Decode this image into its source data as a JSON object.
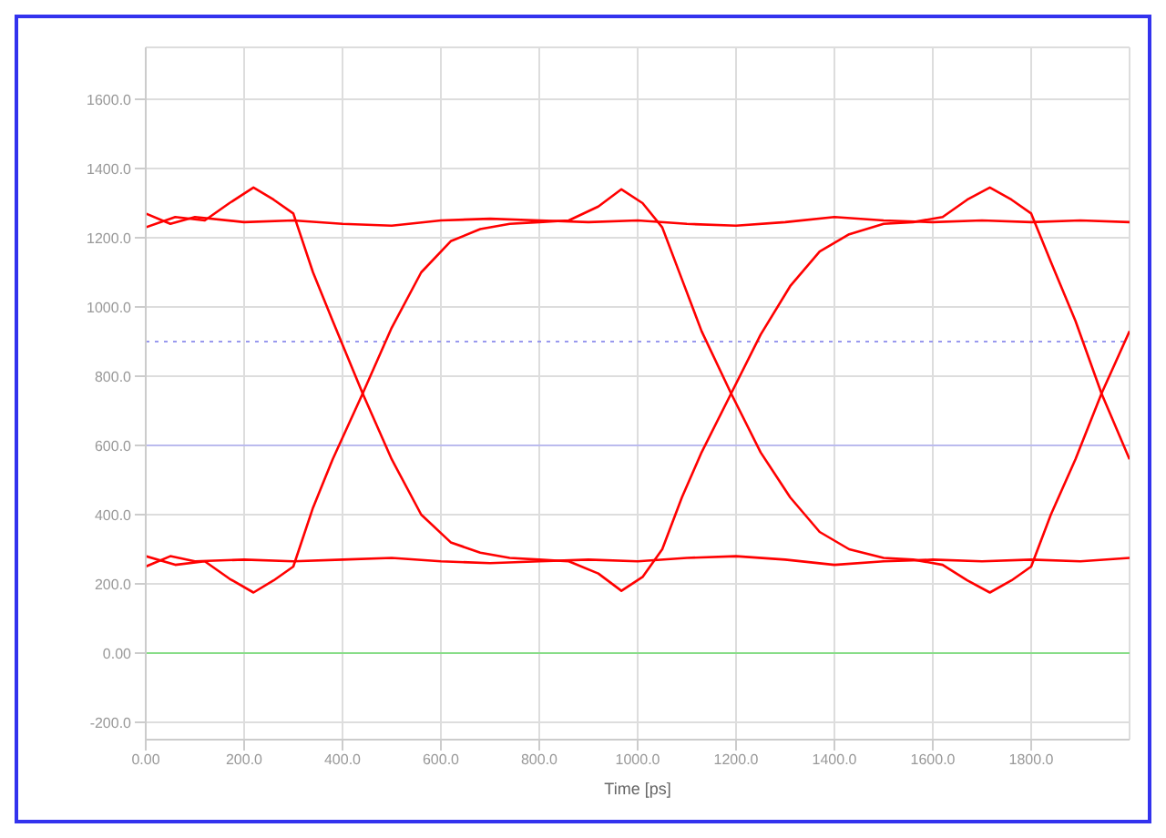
{
  "chart_data": {
    "type": "line",
    "xlabel": "Time [ps]",
    "xlim": [
      0,
      2000
    ],
    "ylim": [
      -250,
      1750
    ],
    "xticks": [
      {
        "value": 0,
        "label": "0.00"
      },
      {
        "value": 200,
        "label": "200.0"
      },
      {
        "value": 400,
        "label": "400.0"
      },
      {
        "value": 600,
        "label": "600.0"
      },
      {
        "value": 800,
        "label": "800.0"
      },
      {
        "value": 1000,
        "label": "1000.0"
      },
      {
        "value": 1200,
        "label": "1200.0"
      },
      {
        "value": 1400,
        "label": "1400.0"
      },
      {
        "value": 1600,
        "label": "1600.0"
      },
      {
        "value": 1800,
        "label": "1800.0"
      }
    ],
    "yticks": [
      {
        "value": -200,
        "label": "-200.0"
      },
      {
        "value": 0,
        "label": "0.00"
      },
      {
        "value": 200,
        "label": "200.0"
      },
      {
        "value": 400,
        "label": "400.0"
      },
      {
        "value": 600,
        "label": "600.0"
      },
      {
        "value": 800,
        "label": "800.0"
      },
      {
        "value": 1000,
        "label": "1000.0"
      },
      {
        "value": 1200,
        "label": "1200.0"
      },
      {
        "value": 1400,
        "label": "1400.0"
      },
      {
        "value": 1600,
        "label": "1600.0"
      }
    ],
    "grid": true,
    "legend": false,
    "marker": "none",
    "line_style": "solid",
    "ref_lines": [
      {
        "axis": "y",
        "value": 900,
        "color": "#9999ee",
        "line_style": "dotted"
      },
      {
        "axis": "y",
        "value": 600,
        "color": "#bbbbee",
        "line_style": "solid"
      },
      {
        "axis": "y",
        "value": 0,
        "color": "#88dd88",
        "line_style": "solid"
      }
    ],
    "series": [
      {
        "color": "#ff0000",
        "x": [
          0,
          60,
          120,
          170,
          219,
          260,
          300,
          340,
          380,
          441,
          500,
          560,
          620,
          680,
          740,
          800,
          860,
          920,
          967,
          1010,
          1050,
          1090,
          1130,
          1190,
          1250,
          1310,
          1370,
          1430,
          1500,
          1560,
          1620,
          1670,
          1716,
          1760,
          1800,
          1840,
          1890,
          1943,
          2000
        ],
        "values": [
          1230,
          1260,
          1250,
          1300,
          1345,
          1310,
          1270,
          1100,
          960,
          750,
          560,
          400,
          320,
          290,
          275,
          270,
          265,
          230,
          180,
          220,
          300,
          450,
          580,
          750,
          920,
          1060,
          1160,
          1210,
          1240,
          1245,
          1260,
          1310,
          1345,
          1310,
          1270,
          1130,
          960,
          750,
          560
        ]
      },
      {
        "color": "#ff0000",
        "x": [
          0,
          60,
          120,
          170,
          219,
          260,
          300,
          340,
          380,
          441,
          500,
          560,
          620,
          680,
          740,
          800,
          860,
          920,
          967,
          1010,
          1050,
          1090,
          1130,
          1190,
          1250,
          1310,
          1370,
          1430,
          1500,
          1560,
          1620,
          1670,
          1716,
          1760,
          1800,
          1840,
          1890,
          1943,
          2000
        ],
        "values": [
          280,
          255,
          265,
          215,
          175,
          210,
          250,
          420,
          560,
          750,
          940,
          1100,
          1190,
          1225,
          1240,
          1245,
          1250,
          1290,
          1340,
          1300,
          1230,
          1080,
          930,
          750,
          580,
          450,
          350,
          300,
          275,
          270,
          255,
          210,
          175,
          210,
          250,
          400,
          560,
          750,
          930
        ]
      },
      {
        "color": "#ff0000",
        "x": [
          0,
          50,
          100,
          200,
          300,
          400,
          500,
          600,
          700,
          800,
          900,
          1000,
          1100,
          1200,
          1300,
          1400,
          1500,
          1600,
          1700,
          1800,
          1900,
          2000
        ],
        "values": [
          1270,
          1240,
          1260,
          1245,
          1250,
          1240,
          1235,
          1250,
          1255,
          1250,
          1245,
          1250,
          1240,
          1235,
          1245,
          1260,
          1250,
          1245,
          1250,
          1245,
          1250,
          1245
        ]
      },
      {
        "color": "#ff0000",
        "x": [
          0,
          50,
          100,
          200,
          300,
          400,
          500,
          600,
          700,
          800,
          900,
          1000,
          1100,
          1200,
          1300,
          1400,
          1500,
          1600,
          1700,
          1800,
          1900,
          2000
        ],
        "values": [
          250,
          280,
          265,
          270,
          265,
          270,
          275,
          265,
          260,
          265,
          270,
          265,
          275,
          280,
          270,
          255,
          265,
          270,
          265,
          270,
          265,
          275
        ]
      }
    ]
  }
}
